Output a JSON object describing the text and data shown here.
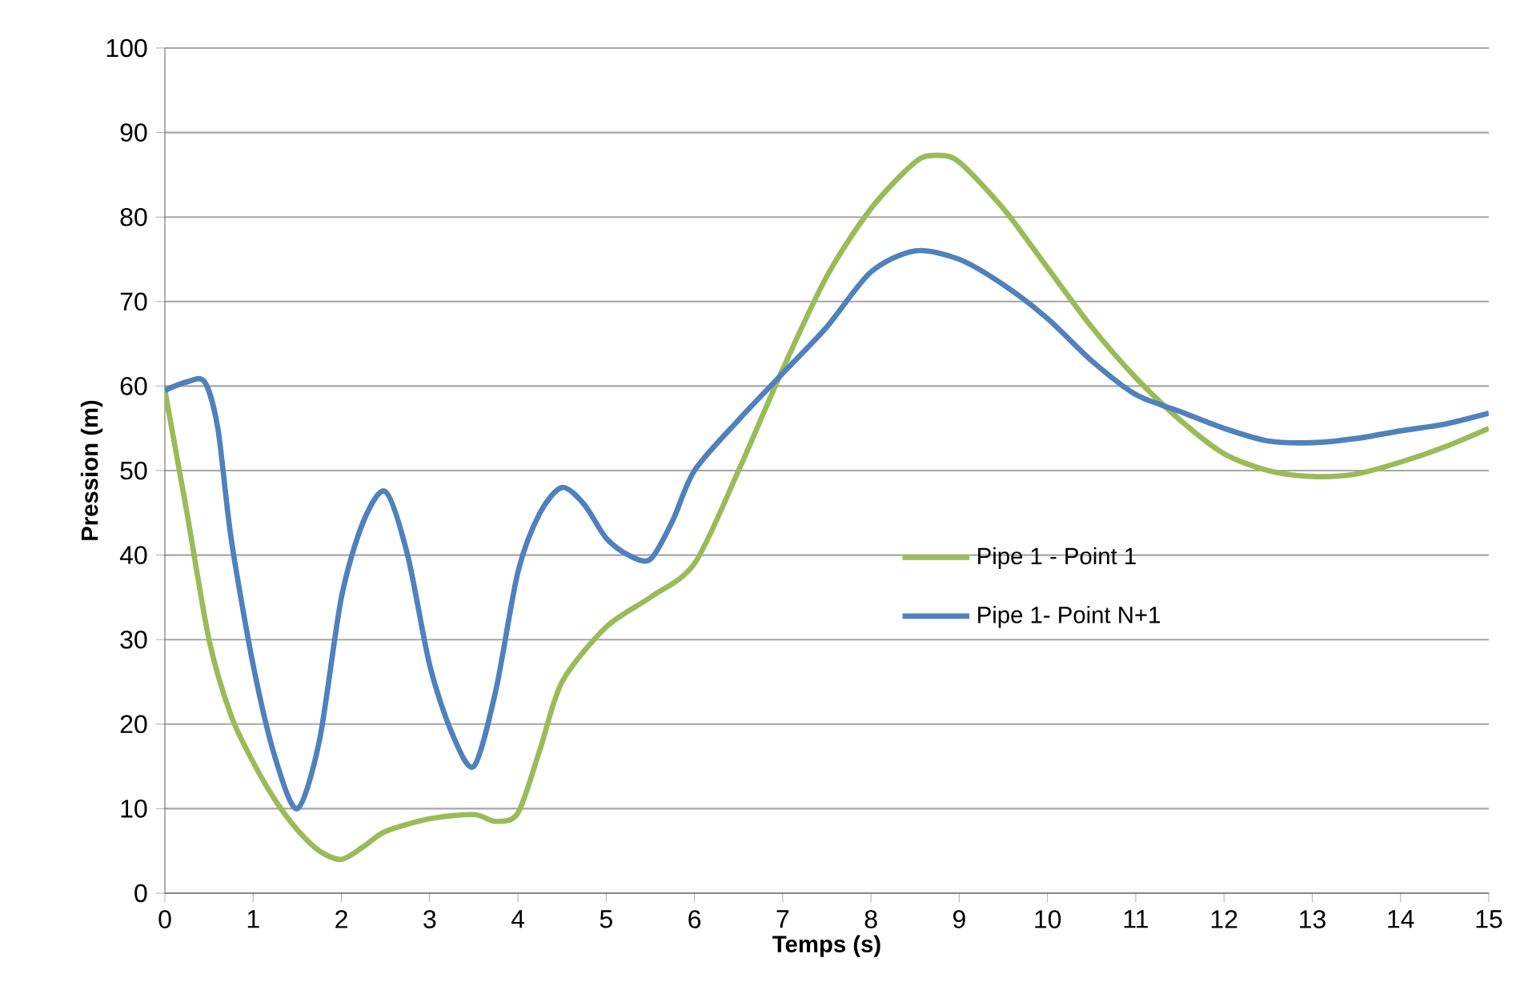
{
  "chart_data": {
    "type": "line",
    "xlabel": "Temps (s)",
    "ylabel": "Pression (m)",
    "xlim": [
      0,
      15
    ],
    "xticks": [
      0,
      1,
      2,
      3,
      4,
      5,
      6,
      7,
      8,
      9,
      10,
      11,
      12,
      13,
      14,
      15
    ],
    "ylim": [
      0,
      100
    ],
    "yticks": [
      0,
      10,
      20,
      30,
      40,
      50,
      60,
      70,
      80,
      90,
      100
    ],
    "grid": "y",
    "legend": "right",
    "marker": "none",
    "line_style": "solid",
    "series": [
      {
        "name": "Pipe 1 - Point 1",
        "color": "#9bbb59",
        "x": [
          0,
          0.25,
          0.5,
          0.75,
          1,
          1.25,
          1.5,
          1.75,
          2,
          2.25,
          2.5,
          3,
          3.5,
          3.75,
          4,
          4.25,
          4.5,
          5,
          5.5,
          6,
          6.5,
          7,
          7.5,
          8,
          8.5,
          8.75,
          9,
          9.5,
          10,
          10.5,
          11,
          11.5,
          12,
          12.5,
          13,
          13.5,
          14,
          14.5,
          15
        ],
        "values": [
          59.5,
          45,
          30,
          21,
          15.5,
          11,
          7.5,
          5,
          4,
          5.5,
          7.3,
          8.8,
          9.3,
          8.5,
          9.5,
          17,
          25,
          31.5,
          35,
          39,
          50,
          62,
          73,
          81,
          86.5,
          87.3,
          86.5,
          81,
          74,
          67,
          61,
          56,
          52,
          50,
          49.3,
          49.6,
          51,
          52.8,
          55
        ]
      },
      {
        "name": "Pipe 1- Point N+1",
        "color": "#4f81bd",
        "x": [
          0,
          0.25,
          0.45,
          0.6,
          0.75,
          1,
          1.25,
          1.5,
          1.75,
          2,
          2.25,
          2.5,
          2.75,
          3,
          3.25,
          3.5,
          3.75,
          4,
          4.25,
          4.5,
          4.75,
          5,
          5.25,
          5.5,
          5.75,
          6,
          6.5,
          7,
          7.5,
          8,
          8.5,
          9,
          9.5,
          10,
          10.5,
          11,
          11.5,
          12,
          12.5,
          13,
          13.5,
          14,
          14.5,
          15
        ],
        "values": [
          59.5,
          60.5,
          60.5,
          55,
          42,
          27,
          16,
          10,
          18,
          35,
          44,
          47.5,
          40,
          27,
          19,
          15,
          24,
          38,
          45,
          48,
          46,
          42,
          40,
          39.5,
          44,
          50,
          56,
          61.5,
          67,
          73.5,
          76,
          75,
          72,
          68,
          63,
          59,
          57,
          55,
          53.5,
          53.3,
          53.8,
          54.7,
          55.5,
          56.8
        ]
      }
    ]
  }
}
